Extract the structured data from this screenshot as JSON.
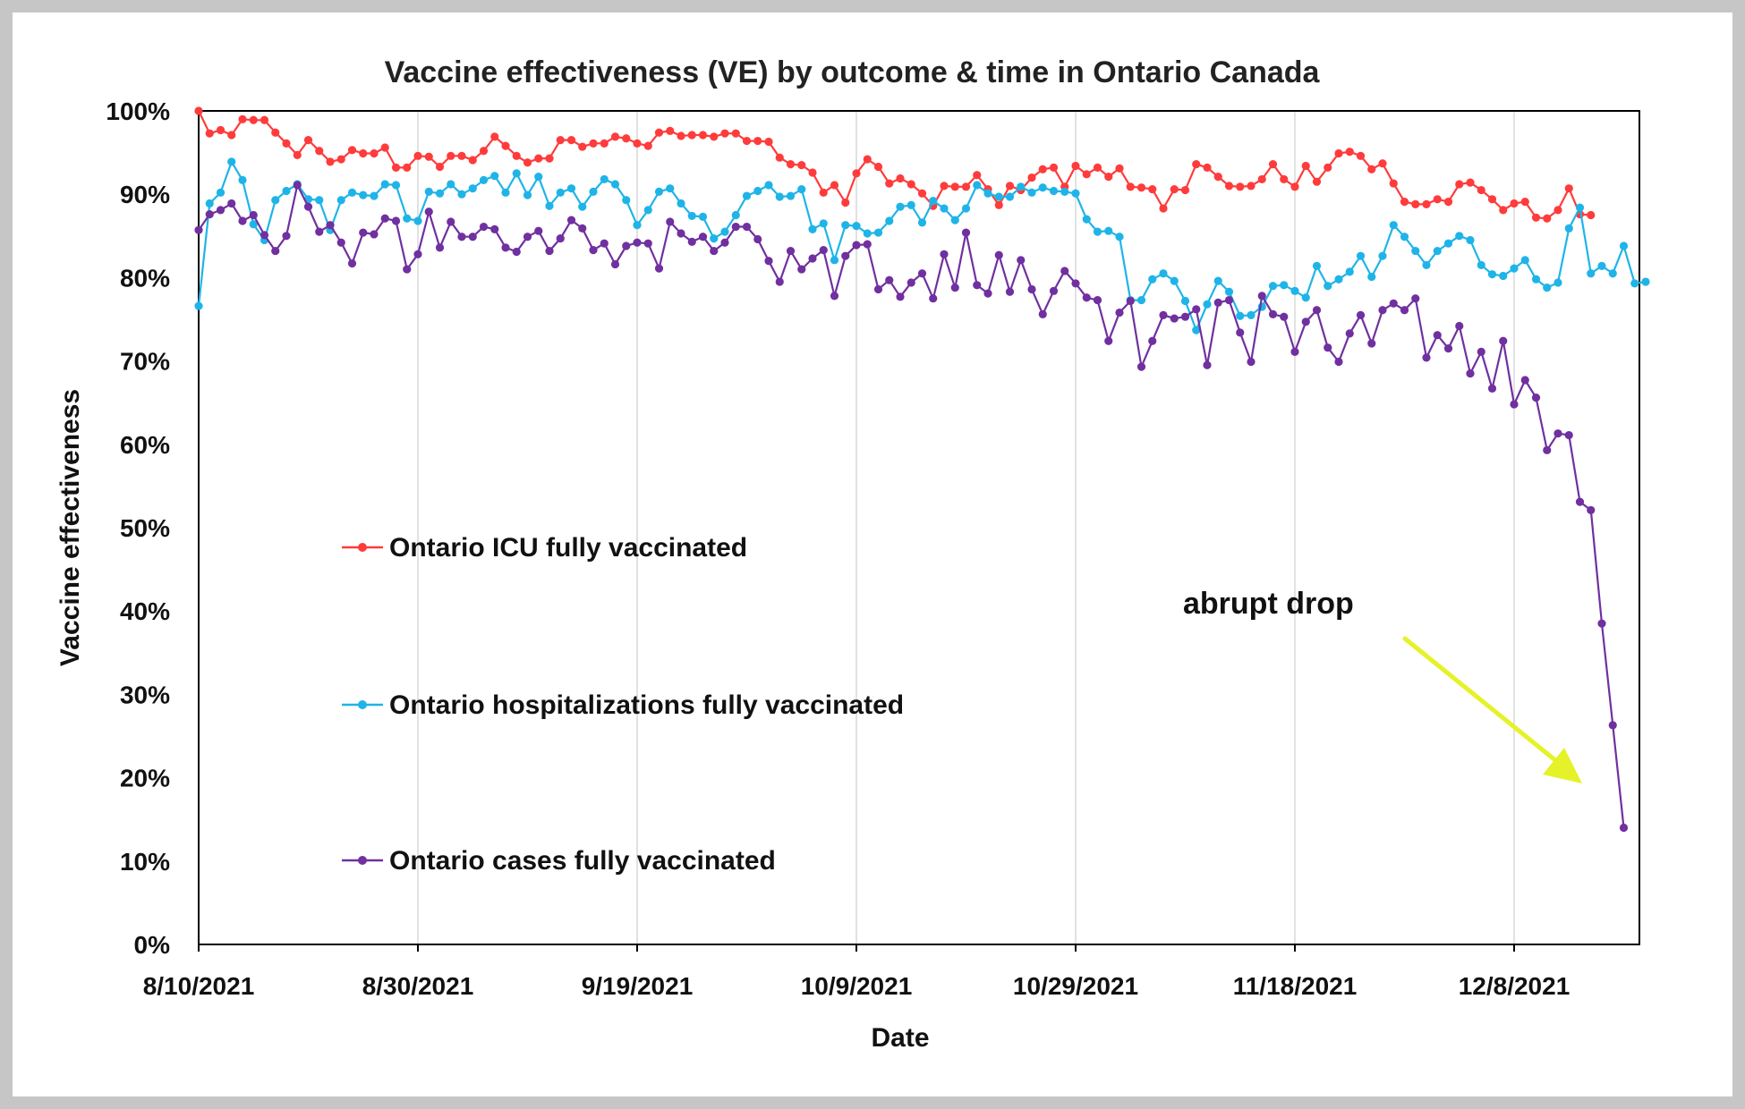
{
  "chart_data": {
    "type": "line",
    "title": "Vaccine effectiveness (VE) by outcome & time in Ontario Canada",
    "xlabel": "Date",
    "ylabel": "Vaccine effectiveness",
    "x_start": "8/10/2021",
    "x_ticks": [
      "8/10/2021",
      "8/30/2021",
      "9/19/2021",
      "10/9/2021",
      "10/29/2021",
      "11/18/2021",
      "12/8/2021"
    ],
    "y_ticks": [
      "0%",
      "10%",
      "20%",
      "30%",
      "40%",
      "50%",
      "60%",
      "70%",
      "80%",
      "90%",
      "100%"
    ],
    "ylim": [
      0,
      100
    ],
    "grid": "vertical",
    "legend_position": "center-left",
    "series": [
      {
        "name": "Ontario ICU fully vaccinated",
        "color": "#ff3b3b",
        "values": [
          100,
          97.3,
          97.7,
          97.1,
          99,
          98.9,
          98.9,
          97.4,
          96.1,
          94.7,
          96.5,
          95.2,
          93.9,
          94.2,
          95.3,
          94.9,
          94.9,
          95.6,
          93.2,
          93.2,
          94.6,
          94.5,
          93.3,
          94.6,
          94.6,
          94.1,
          95.2,
          96.9,
          95.8,
          94.6,
          93.8,
          94.3,
          94.3,
          96.5,
          96.5,
          95.7,
          96.1,
          96.1,
          96.9,
          96.7,
          96.1,
          95.8,
          97.4,
          97.6,
          97,
          97.1,
          97.1,
          96.9,
          97.3,
          97.3,
          96.4,
          96.4,
          96.3,
          94.4,
          93.6,
          93.5,
          92.6,
          90.2,
          91.1,
          89,
          92.5,
          94.2,
          93.3,
          91.3,
          91.9,
          91.2,
          90.1,
          88.6,
          91,
          90.9,
          90.9,
          92.3,
          90.6,
          88.7,
          91,
          90.5,
          92,
          93,
          93.2,
          90.9,
          93.4,
          92.4,
          93.2,
          92.1,
          93.1,
          90.9,
          90.8,
          90.6,
          88.3,
          90.6,
          90.5,
          93.6,
          93.2,
          92.1,
          91,
          90.9,
          91,
          91.8,
          93.6,
          91.8,
          90.9,
          93.4,
          91.5,
          93.2,
          94.9,
          95.1,
          94.6,
          93,
          93.7,
          91.3,
          89.1,
          88.8,
          88.8,
          89.4,
          89.1,
          91.2,
          91.4,
          90.5,
          89.4,
          88.1,
          88.9,
          89.1,
          87.2,
          87.1,
          88.1,
          90.7,
          87.6,
          87.5
        ]
      },
      {
        "name": "Ontario hospitalizations fully vaccinated",
        "color": "#1fb4e8",
        "values": [
          76.6,
          88.9,
          90.2,
          93.9,
          91.7,
          86.4,
          84.5,
          89.3,
          90.4,
          91.2,
          89.4,
          89.3,
          85.7,
          89.3,
          90.2,
          89.9,
          89.8,
          91.2,
          91.1,
          87.1,
          86.8,
          90.3,
          90.1,
          91.2,
          90,
          90.7,
          91.7,
          92.2,
          90.2,
          92.5,
          89.9,
          92.1,
          88.6,
          90.2,
          90.7,
          88.5,
          90.3,
          91.8,
          91.2,
          89.3,
          86.3,
          88.1,
          90.3,
          90.7,
          88.9,
          87.4,
          87.3,
          84.7,
          85.5,
          87.5,
          89.8,
          90.4,
          91.1,
          89.7,
          89.8,
          90.6,
          85.8,
          86.5,
          82.1,
          86.3,
          86.2,
          85.3,
          85.4,
          86.8,
          88.5,
          88.7,
          86.6,
          89.2,
          88.3,
          86.9,
          88.3,
          91.1,
          90.1,
          89.7,
          89.7,
          90.9,
          90.2,
          90.8,
          90.4,
          90.3,
          90.1,
          87,
          85.5,
          85.6,
          84.9,
          77.3,
          77.3,
          79.8,
          80.5,
          79.6,
          77.2,
          73.7,
          76.8,
          79.6,
          78.3,
          75.4,
          75.5,
          76.5,
          79,
          79.1,
          78.4,
          77.6,
          81.4,
          79,
          79.8,
          80.7,
          82.6,
          80.1,
          82.6,
          86.3,
          84.9,
          83.2,
          81.5,
          83.2,
          84.1,
          85,
          84.5,
          81.5,
          80.4,
          80.2,
          81.1,
          82.1,
          79.8,
          78.8,
          79.4,
          85.9,
          88.4,
          80.5,
          81.4,
          80.5,
          83.8,
          79.3,
          79.5
        ]
      },
      {
        "name": "Ontario cases fully vaccinated",
        "color": "#7030a0",
        "values": [
          85.7,
          87.6,
          88.1,
          88.9,
          86.8,
          87.5,
          85.1,
          83.2,
          85,
          91.1,
          88.5,
          85.5,
          86.3,
          84.2,
          81.7,
          85.4,
          85.2,
          87.1,
          86.8,
          81,
          82.8,
          87.9,
          83.6,
          86.7,
          84.9,
          84.9,
          86.1,
          85.8,
          83.6,
          83.1,
          84.9,
          85.6,
          83.2,
          84.7,
          86.9,
          85.9,
          83.3,
          84.1,
          81.6,
          83.8,
          84.2,
          84.1,
          81.1,
          86.7,
          85.3,
          84.3,
          84.9,
          83.2,
          84.2,
          86.1,
          86.1,
          84.6,
          82,
          79.5,
          83.2,
          81,
          82.3,
          83.3,
          77.8,
          82.6,
          83.9,
          84,
          78.6,
          79.7,
          77.7,
          79.4,
          80.5,
          77.5,
          82.8,
          78.8,
          85.4,
          79.1,
          78.1,
          82.7,
          78.3,
          82.1,
          78.6,
          75.6,
          78.4,
          80.8,
          79.3,
          77.6,
          77.3,
          72.4,
          75.8,
          77.2,
          69.3,
          72.4,
          75.5,
          75.1,
          75.3,
          76.2,
          69.5,
          77,
          77.3,
          73.4,
          69.9,
          77.8,
          75.6,
          75.3,
          71.1,
          74.7,
          76.1,
          71.6,
          69.9,
          73.3,
          75.5,
          72.1,
          76.1,
          76.9,
          76.1,
          77.5,
          70.4,
          73.1,
          71.5,
          74.2,
          68.5,
          71.1,
          66.7,
          72.4,
          64.8,
          67.7,
          65.6,
          59.3,
          61.3,
          61.1,
          53.1,
          52.1,
          38.5,
          26.3,
          14
        ]
      }
    ],
    "annotations": [
      {
        "text": "abrupt drop",
        "arrow_color": "#e5f229"
      }
    ]
  }
}
